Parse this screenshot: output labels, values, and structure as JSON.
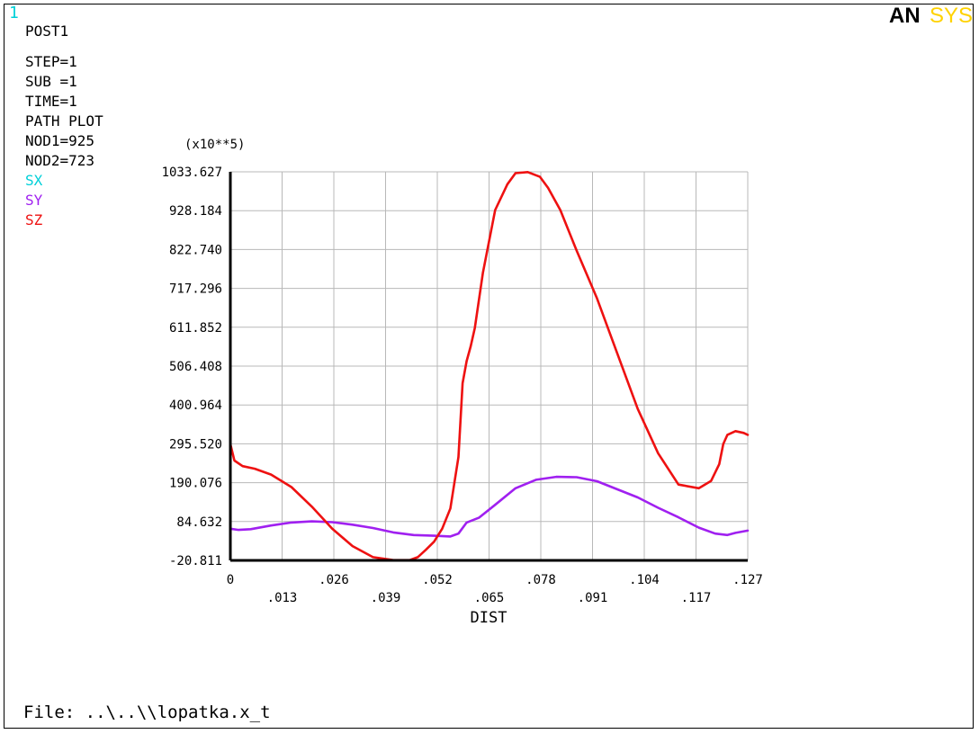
{
  "window_number": "1",
  "logo": {
    "text_an": "AN",
    "text_sys": "SYS"
  },
  "info": {
    "mode": "POST1",
    "lines": [
      "STEP=1",
      "SUB =1",
      "TIME=1",
      "PATH PLOT",
      "NOD1=925",
      "NOD2=723"
    ]
  },
  "file_label": "File: ..\\..\\\\lopatka.x_t",
  "colors": {
    "SX": "#00d0d8",
    "SY": "#a020f0",
    "SZ": "#ee1111",
    "window_number": "#00d0d8",
    "logo_an": "#000000",
    "logo_sys": "#ffd200"
  },
  "chart_data": {
    "type": "line",
    "y_multiplier": "(x10**5)",
    "xlabel": "DIST",
    "xlim": [
      0,
      0.127
    ],
    "ylim": [
      -20.811,
      1033.627
    ],
    "y_ticks": [
      "1033.627",
      "928.184",
      "822.740",
      "717.296",
      "611.852",
      "506.408",
      "400.964",
      "295.520",
      "190.076",
      "84.632",
      "-20.811"
    ],
    "x_ticks_upper": [
      "0",
      ".026",
      ".052",
      ".078",
      ".104",
      ".127"
    ],
    "x_ticks_lower": [
      ".013",
      ".039",
      ".065",
      ".091",
      ".117"
    ],
    "grid": true,
    "legend": [
      "SX",
      "SY",
      "SZ"
    ],
    "series": [
      {
        "name": "SX",
        "x": [],
        "y": []
      },
      {
        "name": "SY",
        "x": [
          0,
          0.002,
          0.005,
          0.01,
          0.015,
          0.02,
          0.025,
          0.03,
          0.035,
          0.04,
          0.045,
          0.05,
          0.054,
          0.056,
          0.058,
          0.061,
          0.065,
          0.07,
          0.075,
          0.08,
          0.085,
          0.09,
          0.095,
          0.1,
          0.105,
          0.11,
          0.115,
          0.119,
          0.122,
          0.124,
          0.127
        ],
        "y": [
          65,
          62,
          64,
          74,
          82,
          85,
          83,
          76,
          67,
          55,
          48,
          46,
          44,
          52,
          82,
          95,
          130,
          175,
          198,
          206,
          205,
          194,
          172,
          150,
          122,
          96,
          68,
          52,
          48,
          54,
          60
        ]
      },
      {
        "name": "SZ",
        "x": [
          0,
          0.001,
          0.003,
          0.006,
          0.01,
          0.015,
          0.02,
          0.025,
          0.03,
          0.035,
          0.04,
          0.044,
          0.046,
          0.048,
          0.05,
          0.052,
          0.054,
          0.056,
          0.057,
          0.058,
          0.059,
          0.06,
          0.062,
          0.065,
          0.068,
          0.07,
          0.073,
          0.076,
          0.078,
          0.081,
          0.085,
          0.09,
          0.095,
          0.1,
          0.105,
          0.11,
          0.115,
          0.118,
          0.12,
          0.121,
          0.122,
          0.124,
          0.126,
          0.127
        ],
        "y": [
          295,
          250,
          235,
          228,
          212,
          178,
          125,
          65,
          18,
          -12,
          -20,
          -20,
          -12,
          8,
          30,
          65,
          120,
          260,
          460,
          520,
          560,
          610,
          760,
          930,
          1000,
          1030,
          1033,
          1020,
          990,
          930,
          820,
          690,
          540,
          390,
          270,
          185,
          175,
          195,
          240,
          295,
          320,
          330,
          325,
          320
        ]
      }
    ]
  }
}
